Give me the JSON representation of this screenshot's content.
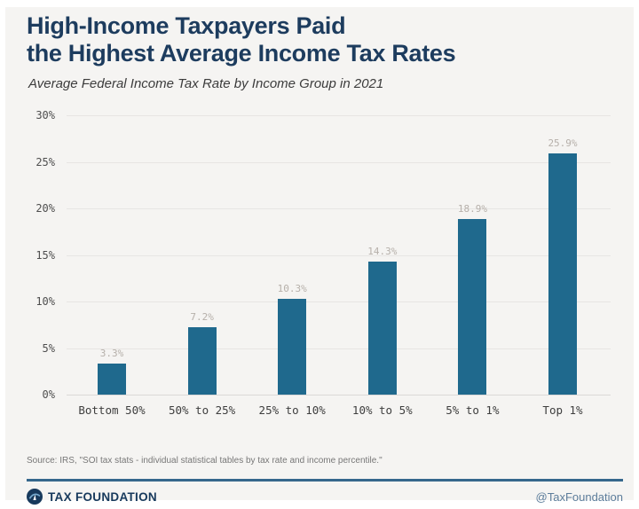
{
  "header": {
    "title_line1": "High-Income Taxpayers Paid",
    "title_line2": "the Highest Average Income Tax Rates",
    "subtitle": "Average Federal Income Tax Rate by Income Group in 2021"
  },
  "chart_data": {
    "type": "bar",
    "categories": [
      "Bottom 50%",
      "50% to 25%",
      "25% to 10%",
      "10% to 5%",
      "5% to 1%",
      "Top 1%"
    ],
    "values": [
      3.3,
      7.2,
      10.3,
      14.3,
      18.9,
      25.9
    ],
    "value_labels": [
      "3.3%",
      "7.2%",
      "10.3%",
      "14.3%",
      "18.9%",
      "25.9%"
    ],
    "title": "High-Income Taxpayers Paid the Highest Average Income Tax Rates",
    "subtitle": "Average Federal Income Tax Rate by Income Group in 2021",
    "xlabel": "",
    "ylabel": "",
    "ylim": [
      0,
      30
    ],
    "yticks": [
      0,
      5,
      10,
      15,
      20,
      25,
      30
    ],
    "ytick_labels": [
      "0%",
      "5%",
      "10%",
      "15%",
      "20%",
      "25%",
      "30%"
    ],
    "grid": true,
    "legend": false,
    "bar_color": "#1f698d"
  },
  "footer": {
    "source": "Source: IRS, \"SOI tax stats - individual statistical tables by tax rate and income percentile.\"",
    "brand": "TAX FOUNDATION",
    "handle": "@TaxFoundation"
  },
  "colors": {
    "card_bg": "#f5f4f2",
    "title_navy": "#1d3c5e",
    "bar": "#1f698d",
    "rule_blue": "#35678c",
    "value_label_gray": "#b6b0aa"
  }
}
